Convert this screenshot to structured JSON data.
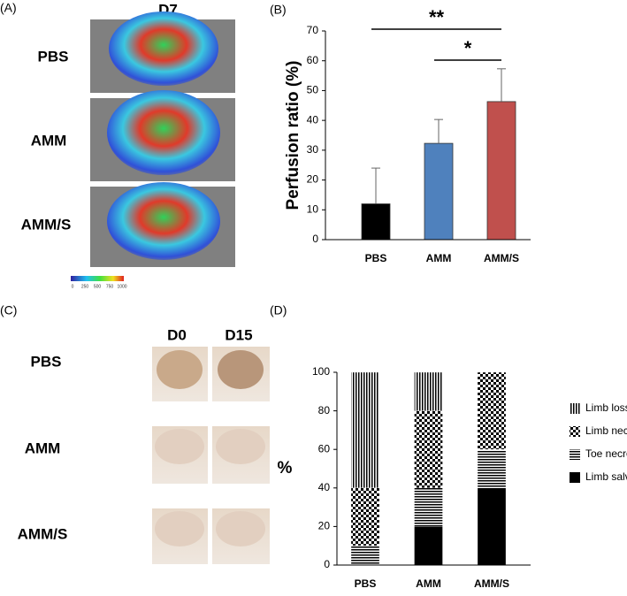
{
  "panels": {
    "a": {
      "label": "(A)",
      "time": "D7",
      "rows": [
        "PBS",
        "AMM",
        "AMM/S"
      ],
      "scale_labels": [
        0,
        250,
        500,
        750,
        1000
      ]
    },
    "c": {
      "label": "(C)",
      "times": [
        "D0",
        "D15"
      ],
      "rows": [
        "PBS",
        "AMM",
        "AMM/S"
      ]
    }
  },
  "chart_data": [
    {
      "type": "bar",
      "panel_label": "(B)",
      "ylabel": "Perfusion ratio (%)",
      "categories": [
        "PBS",
        "AMM",
        "AMM/S"
      ],
      "values": [
        12,
        32.3,
        46.3
      ],
      "errors": [
        12,
        8,
        11
      ],
      "colors": [
        "#000000",
        "#4f81bd",
        "#c0504d"
      ],
      "ylim": [
        0,
        70
      ],
      "yticks": [
        0,
        10,
        20,
        30,
        40,
        50,
        60,
        70
      ],
      "annotations": [
        {
          "text": "**",
          "from": 0,
          "to": 2
        },
        {
          "text": "*",
          "from": 1,
          "to": 2
        }
      ]
    },
    {
      "type": "stacked_bar",
      "panel_label": "(D)",
      "ylabel": "%",
      "categories": [
        "PBS",
        "AMM",
        "AMM/S"
      ],
      "series": [
        {
          "name": "Limb salvage",
          "color": "#000000",
          "pattern": "solid",
          "values": [
            0,
            20,
            40
          ]
        },
        {
          "name": "Toe necrosis",
          "color": "#000000",
          "pattern": "hlines",
          "values": [
            10,
            20,
            20
          ]
        },
        {
          "name": "Limb necrosis",
          "color": "#000000",
          "pattern": "checker",
          "values": [
            30,
            40,
            40
          ]
        },
        {
          "name": "Limb loss",
          "color": "#000000",
          "pattern": "vlines",
          "values": [
            60,
            20,
            0
          ]
        }
      ],
      "ylim": [
        0,
        100
      ],
      "yticks": [
        0,
        20,
        40,
        60,
        80,
        100
      ],
      "legend": "right"
    }
  ]
}
